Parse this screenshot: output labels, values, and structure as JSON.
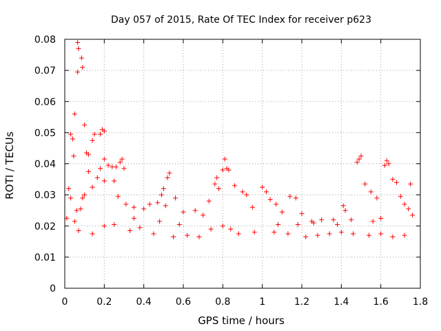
{
  "chart_data": {
    "type": "scatter",
    "title": "Day 057 of 2015, Rate Of TEC Index for receiver p623",
    "xlabel": "GPS time / hours",
    "ylabel": "ROTI / TECUs",
    "xlim": [
      0,
      1.8
    ],
    "ylim": [
      0,
      0.08
    ],
    "x_ticks": [
      "0",
      "0.2",
      "0.4",
      "0.6",
      "0.8",
      "1",
      "1.2",
      "1.4",
      "1.6",
      "1.8"
    ],
    "y_ticks": [
      "0",
      "0.01",
      "0.02",
      "0.03",
      "0.04",
      "0.05",
      "0.06",
      "0.07",
      "0.08"
    ],
    "grid": true,
    "marker": "plus",
    "color": "#ff0000",
    "series": [
      {
        "points": [
          [
            0.065,
            0.079
          ],
          [
            0.07,
            0.077
          ],
          [
            0.085,
            0.074
          ],
          [
            0.09,
            0.071
          ],
          [
            0.065,
            0.0695
          ],
          [
            0.05,
            0.056
          ],
          [
            0.1,
            0.0525
          ],
          [
            0.03,
            0.0495
          ],
          [
            0.04,
            0.048
          ],
          [
            0.15,
            0.0495
          ],
          [
            0.18,
            0.0495
          ],
          [
            0.19,
            0.051
          ],
          [
            0.2,
            0.0505
          ],
          [
            0.14,
            0.0475
          ],
          [
            0.12,
            0.043
          ],
          [
            0.11,
            0.0435
          ],
          [
            0.045,
            0.0425
          ],
          [
            0.2,
            0.0415
          ],
          [
            0.29,
            0.0415
          ],
          [
            0.28,
            0.0405
          ],
          [
            0.22,
            0.0395
          ],
          [
            0.24,
            0.039
          ],
          [
            0.26,
            0.039
          ],
          [
            0.18,
            0.0385
          ],
          [
            0.3,
            0.0385
          ],
          [
            0.12,
            0.0375
          ],
          [
            0.165,
            0.0355
          ],
          [
            0.2,
            0.0345
          ],
          [
            0.25,
            0.0345
          ],
          [
            0.14,
            0.0325
          ],
          [
            0.02,
            0.032
          ],
          [
            0.1,
            0.03
          ],
          [
            0.09,
            0.029
          ],
          [
            0.03,
            0.029
          ],
          [
            0.06,
            0.025
          ],
          [
            0.08,
            0.0255
          ],
          [
            0.27,
            0.0295
          ],
          [
            0.31,
            0.027
          ],
          [
            0.35,
            0.026
          ],
          [
            0.4,
            0.0255
          ],
          [
            0.43,
            0.027
          ],
          [
            0.53,
            0.037
          ],
          [
            0.52,
            0.0355
          ],
          [
            0.5,
            0.032
          ],
          [
            0.49,
            0.03
          ],
          [
            0.56,
            0.029
          ],
          [
            0.47,
            0.0275
          ],
          [
            0.51,
            0.0265
          ],
          [
            0.6,
            0.0245
          ],
          [
            0.66,
            0.025
          ],
          [
            0.7,
            0.0235
          ],
          [
            0.77,
            0.0355
          ],
          [
            0.76,
            0.0335
          ],
          [
            0.78,
            0.032
          ],
          [
            0.81,
            0.0415
          ],
          [
            0.82,
            0.0385
          ],
          [
            0.83,
            0.038
          ],
          [
            0.8,
            0.038
          ],
          [
            0.86,
            0.033
          ],
          [
            0.9,
            0.031
          ],
          [
            0.92,
            0.03
          ],
          [
            0.73,
            0.028
          ],
          [
            0.95,
            0.026
          ],
          [
            1.0,
            0.0325
          ],
          [
            1.02,
            0.031
          ],
          [
            1.04,
            0.0285
          ],
          [
            1.07,
            0.027
          ],
          [
            1.1,
            0.0245
          ],
          [
            1.14,
            0.0295
          ],
          [
            1.17,
            0.029
          ],
          [
            1.2,
            0.024
          ],
          [
            1.25,
            0.0215
          ],
          [
            1.3,
            0.022
          ],
          [
            1.36,
            0.022
          ],
          [
            1.41,
            0.0265
          ],
          [
            1.42,
            0.025
          ],
          [
            1.45,
            0.022
          ],
          [
            1.48,
            0.0405
          ],
          [
            1.49,
            0.0415
          ],
          [
            1.5,
            0.0425
          ],
          [
            1.52,
            0.0335
          ],
          [
            1.55,
            0.031
          ],
          [
            1.58,
            0.029
          ],
          [
            1.62,
            0.0395
          ],
          [
            1.63,
            0.041
          ],
          [
            1.64,
            0.04
          ],
          [
            1.66,
            0.035
          ],
          [
            1.68,
            0.034
          ],
          [
            1.7,
            0.0295
          ],
          [
            1.72,
            0.027
          ],
          [
            1.75,
            0.0335
          ],
          [
            1.74,
            0.0255
          ],
          [
            1.76,
            0.0235
          ],
          [
            1.56,
            0.0215
          ],
          [
            1.6,
            0.0225
          ],
          [
            0.07,
            0.0185
          ],
          [
            0.14,
            0.0175
          ],
          [
            0.2,
            0.02
          ],
          [
            0.25,
            0.0205
          ],
          [
            0.33,
            0.0185
          ],
          [
            0.38,
            0.0195
          ],
          [
            0.45,
            0.0175
          ],
          [
            0.55,
            0.0165
          ],
          [
            0.62,
            0.017
          ],
          [
            0.68,
            0.0165
          ],
          [
            0.74,
            0.019
          ],
          [
            0.8,
            0.02
          ],
          [
            0.84,
            0.019
          ],
          [
            0.88,
            0.0175
          ],
          [
            0.96,
            0.018
          ],
          [
            1.06,
            0.018
          ],
          [
            1.13,
            0.0175
          ],
          [
            1.22,
            0.0165
          ],
          [
            1.28,
            0.017
          ],
          [
            1.34,
            0.0175
          ],
          [
            1.4,
            0.018
          ],
          [
            1.46,
            0.0175
          ],
          [
            1.54,
            0.017
          ],
          [
            1.6,
            0.0175
          ],
          [
            1.66,
            0.0165
          ],
          [
            1.72,
            0.017
          ],
          [
            0.05,
            0.0215
          ],
          [
            0.01,
            0.0225
          ],
          [
            0.35,
            0.0225
          ],
          [
            0.48,
            0.0215
          ],
          [
            0.58,
            0.0205
          ],
          [
            1.08,
            0.0205
          ],
          [
            1.18,
            0.0205
          ],
          [
            1.26,
            0.021
          ],
          [
            1.38,
            0.0205
          ]
        ]
      }
    ]
  }
}
